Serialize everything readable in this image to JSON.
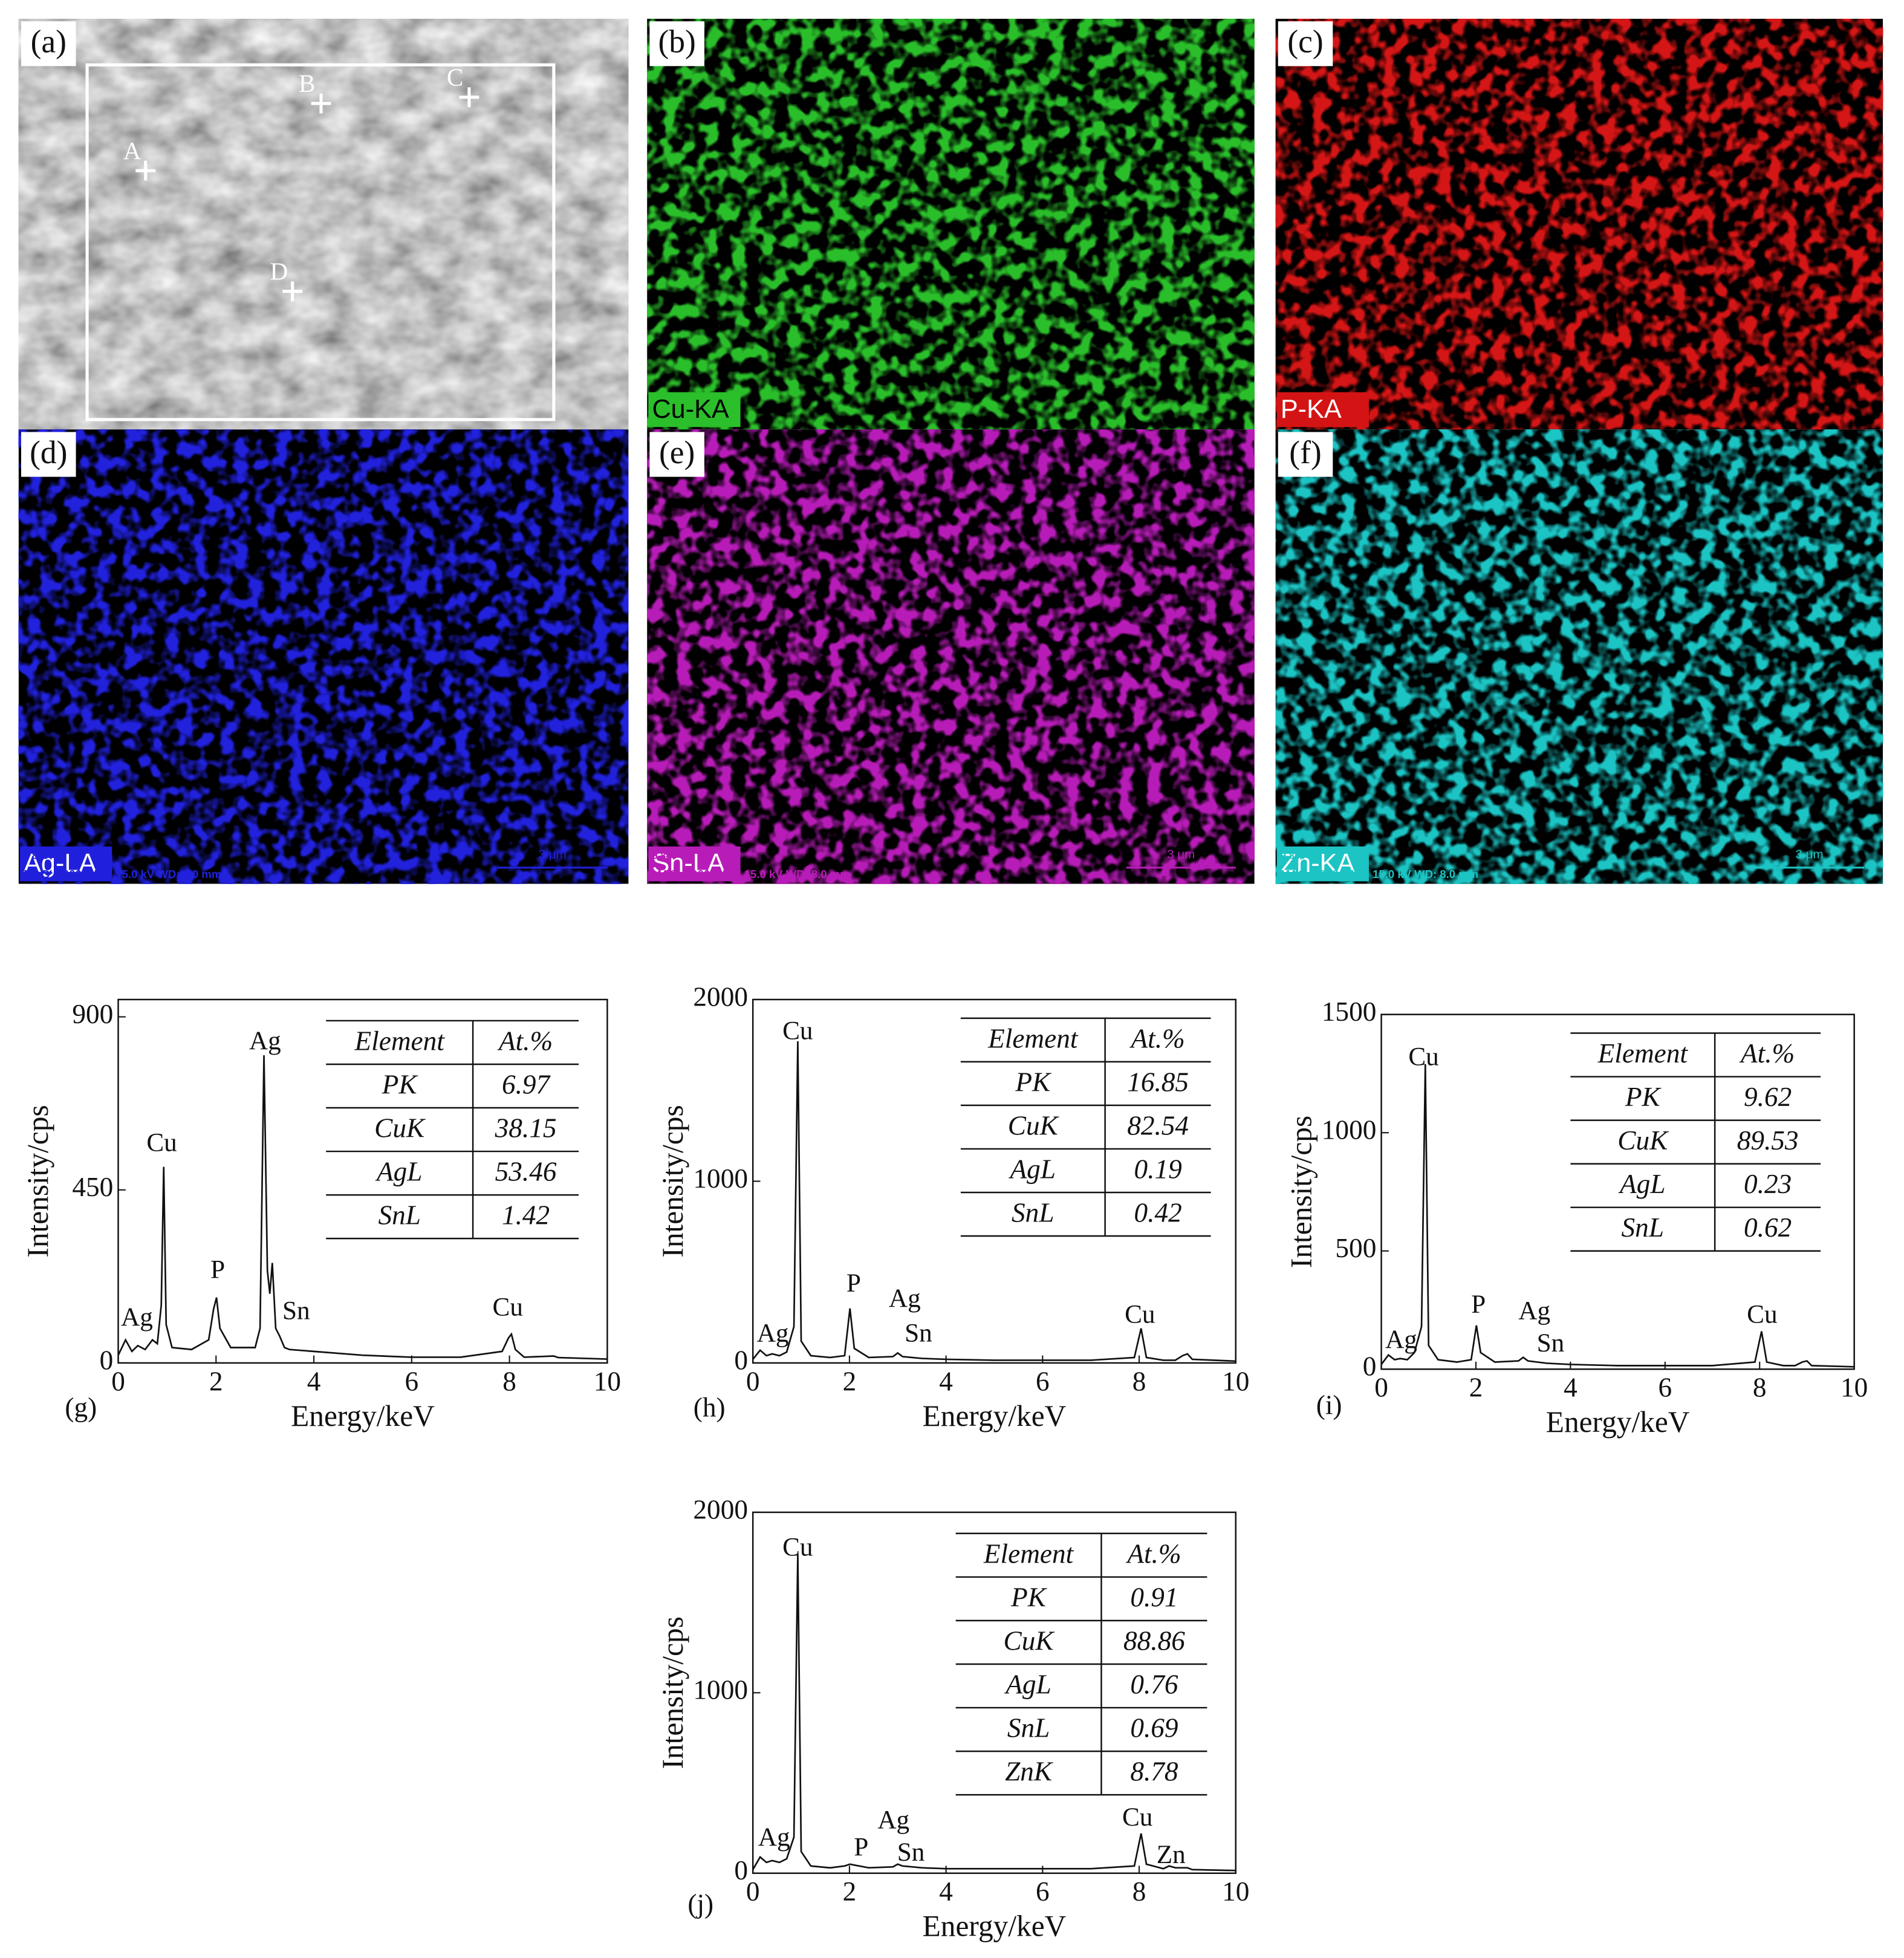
{
  "panels": [
    {
      "label": "(a)",
      "points": [
        "A",
        "B",
        "C",
        "D"
      ],
      "color": "#8c8c8c"
    },
    {
      "label": "(b)",
      "element": "Cu-KA",
      "color": "#2bbf2b"
    },
    {
      "label": "(c)",
      "element": "P-KA",
      "color": "#d41414"
    },
    {
      "label": "(d)",
      "element": "Ag-LA",
      "color": "#2020dc",
      "id_text": "9 849",
      "info": "MAG: 5000 x  HV: 15.0 kV  WD: 8.0 mm",
      "scale": "3 μm"
    },
    {
      "label": "(e)",
      "element": "Sn-LA",
      "color": "#b81cb8",
      "id_text": "9 849",
      "info": "MAG: 5000 x  HV: 15.0 kV  WD: 8.0 mm",
      "scale": "3 μm"
    },
    {
      "label": "(f)",
      "element": "Zn-KA",
      "color": "#1cc4c4",
      "id_text": "9 849",
      "info": "MAG: 5000 x  HV: 15.0 kV  WD: 8.0 mm",
      "scale": "3 μm"
    }
  ],
  "chart_data": [
    {
      "type": "line",
      "label": "(g)",
      "xlabel": "Energy/keV",
      "ylabel": "Intensity/cps",
      "color": "#111111",
      "xlim": [
        0,
        10
      ],
      "ylim": [
        0,
        945
      ],
      "xticks": [
        0,
        2,
        4,
        6,
        8,
        10
      ],
      "yticks": [
        0,
        450,
        900
      ],
      "x": [
        0,
        0.15,
        0.28,
        0.4,
        0.55,
        0.7,
        0.8,
        0.88,
        0.93,
        0.98,
        1.1,
        1.5,
        1.85,
        1.95,
        2.01,
        2.08,
        2.3,
        2.8,
        2.9,
        2.98,
        3.05,
        3.1,
        3.15,
        3.22,
        3.3,
        3.4,
        3.5,
        4,
        5,
        6,
        7,
        7.85,
        7.98,
        8.04,
        8.12,
        8.3,
        8.9,
        9,
        10
      ],
      "values": [
        20,
        60,
        30,
        45,
        35,
        60,
        50,
        150,
        510,
        100,
        40,
        35,
        60,
        140,
        170,
        90,
        40,
        40,
        90,
        800,
        240,
        180,
        260,
        90,
        70,
        40,
        35,
        30,
        20,
        15,
        15,
        30,
        65,
        75,
        35,
        15,
        18,
        14,
        10
      ],
      "annotations": [
        "Ag",
        "Cu",
        "P",
        "Ag",
        "Sn",
        "Cu"
      ],
      "table": {
        "header": [
          "Element",
          "At.%"
        ],
        "rows": [
          [
            "PK",
            "6.97"
          ],
          [
            "CuK",
            "38.15"
          ],
          [
            "AgL",
            "53.46"
          ],
          [
            "SnL",
            "1.42"
          ]
        ]
      }
    },
    {
      "type": "line",
      "label": "(h)",
      "xlabel": "Energy/keV",
      "ylabel": "Intensity/cps",
      "color": "#111111",
      "xlim": [
        0,
        10
      ],
      "ylim": [
        0,
        2000
      ],
      "xticks": [
        0,
        2,
        4,
        6,
        8,
        10
      ],
      "yticks": [
        0,
        1000,
        2000
      ],
      "x": [
        0,
        0.15,
        0.28,
        0.4,
        0.55,
        0.7,
        0.85,
        0.93,
        1.0,
        1.2,
        1.6,
        1.9,
        2.01,
        2.1,
        2.4,
        2.9,
        3.0,
        3.1,
        3.5,
        4,
        5,
        6,
        7,
        7.9,
        8.04,
        8.15,
        8.5,
        8.62,
        8.75,
        8.9,
        9.0,
        9.1,
        10
      ],
      "values": [
        20,
        70,
        40,
        50,
        40,
        60,
        200,
        1770,
        120,
        40,
        30,
        40,
        300,
        80,
        30,
        35,
        55,
        35,
        25,
        20,
        15,
        15,
        15,
        30,
        190,
        30,
        15,
        15,
        15,
        40,
        50,
        20,
        10
      ],
      "annotations": [
        "Ag",
        "Cu",
        "P",
        "Ag",
        "Sn",
        "Cu"
      ],
      "table": {
        "header": [
          "Element",
          "At.%"
        ],
        "rows": [
          [
            "PK",
            "16.85"
          ],
          [
            "CuK",
            "82.54"
          ],
          [
            "AgL",
            "0.19"
          ],
          [
            "SnL",
            "0.42"
          ]
        ]
      }
    },
    {
      "type": "line",
      "label": "(i)",
      "xlabel": "Energy/keV",
      "ylabel": "Intensity/cps",
      "color": "#111111",
      "xlim": [
        0,
        10
      ],
      "ylim": [
        0,
        1500
      ],
      "xticks": [
        0,
        2,
        4,
        6,
        8,
        10
      ],
      "yticks": [
        0,
        500,
        1000,
        1500
      ],
      "x": [
        0,
        0.15,
        0.28,
        0.4,
        0.55,
        0.7,
        0.85,
        0.93,
        1.0,
        1.2,
        1.6,
        1.9,
        2.01,
        2.1,
        2.4,
        2.9,
        3.0,
        3.1,
        3.5,
        4,
        5,
        6,
        7,
        7.9,
        8.04,
        8.15,
        8.5,
        8.62,
        8.75,
        8.9,
        9.0,
        9.1,
        10
      ],
      "values": [
        20,
        60,
        40,
        45,
        40,
        70,
        180,
        1290,
        100,
        40,
        30,
        40,
        185,
        70,
        30,
        35,
        50,
        35,
        25,
        20,
        15,
        15,
        15,
        30,
        160,
        30,
        15,
        15,
        15,
        30,
        35,
        15,
        10
      ],
      "annotations": [
        "Ag",
        "Cu",
        "P",
        "Ag",
        "Sn",
        "Cu"
      ],
      "table": {
        "header": [
          "Element",
          "At.%"
        ],
        "rows": [
          [
            "PK",
            "9.62"
          ],
          [
            "CuK",
            "89.53"
          ],
          [
            "AgL",
            "0.23"
          ],
          [
            "SnL",
            "0.62"
          ]
        ]
      }
    },
    {
      "type": "line",
      "label": "(j)",
      "xlabel": "Energy/keV",
      "ylabel": "Intensity/cps",
      "color": "#111111",
      "xlim": [
        0,
        10
      ],
      "ylim": [
        0,
        2000
      ],
      "xticks": [
        0,
        2,
        4,
        6,
        8,
        10
      ],
      "yticks": [
        0,
        1000,
        2000
      ],
      "x": [
        0,
        0.15,
        0.28,
        0.4,
        0.55,
        0.7,
        0.85,
        0.93,
        1.0,
        1.2,
        1.6,
        1.9,
        2.01,
        2.1,
        2.4,
        2.9,
        3.0,
        3.1,
        3.5,
        4,
        5,
        6,
        7,
        7.9,
        8.04,
        8.15,
        8.5,
        8.62,
        8.75,
        8.9,
        9.0,
        9.1,
        10
      ],
      "values": [
        20,
        90,
        60,
        70,
        60,
        80,
        200,
        1770,
        120,
        40,
        30,
        40,
        50,
        45,
        30,
        35,
        50,
        40,
        30,
        25,
        25,
        25,
        25,
        40,
        220,
        50,
        25,
        40,
        30,
        30,
        30,
        20,
        15
      ],
      "annotations": [
        "Ag",
        "Cu",
        "P",
        "Ag",
        "Sn",
        "Cu",
        "Zn"
      ],
      "table": {
        "header": [
          "Element",
          "At.%"
        ],
        "rows": [
          [
            "PK",
            "0.91"
          ],
          [
            "CuK",
            "88.86"
          ],
          [
            "AgL",
            "0.76"
          ],
          [
            "SnL",
            "0.69"
          ],
          [
            "ZnK",
            "8.78"
          ]
        ]
      }
    }
  ]
}
